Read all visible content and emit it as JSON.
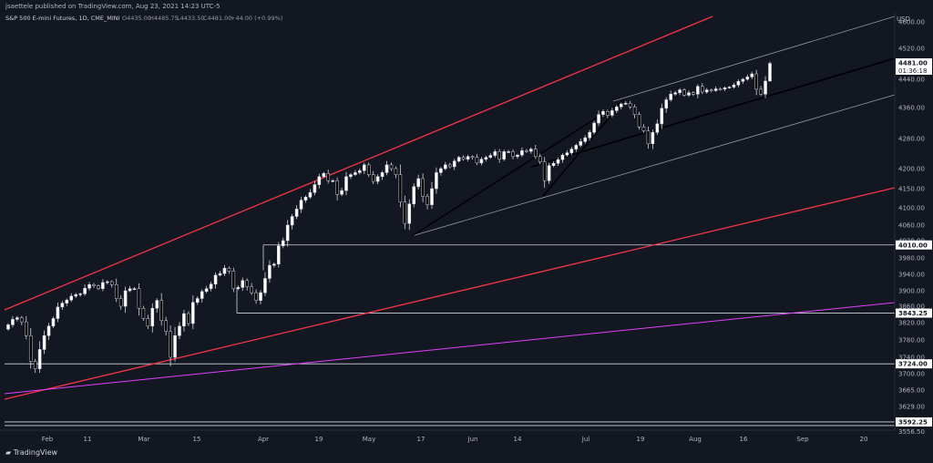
{
  "header": {
    "publish_line": "jsaettele published on TradingView.com, Aug 23, 2021 14:23 UTC-5"
  },
  "legend": {
    "symbol": "S&P 500 E-mini Futures, 1D, CME_MINI",
    "open": "O4435.00",
    "high": "H4485.75",
    "low": "L4433.50",
    "close": "C4481.00",
    "change": "+44.00 (+0.99%)"
  },
  "axis": {
    "currency": "USD",
    "current_price": "4481.00",
    "countdown": "01:36:18",
    "horizontal_level_labels": [
      "4010.00",
      "3843.25",
      "3724.00",
      "3592.25"
    ],
    "partial_label": "3556.50"
  },
  "footer": {
    "logo_text": "TradingView"
  },
  "colors": {
    "background": "#131722",
    "up_candle": "#ffffff",
    "down_candle": "#000000",
    "red_channel": "#f23645",
    "magenta_line": "#e040fb",
    "trendline": "#000000",
    "thin_channel": "#b2b5be"
  },
  "chart_data": {
    "type": "candlestick",
    "title": "S&P 500 E-mini Futures, 1D, CME_MINI",
    "xlabel": "",
    "ylabel": "",
    "ylim": [
      3575,
      4620
    ],
    "grid": false,
    "x_ticks": [
      "Feb",
      "11",
      "Mar",
      "15",
      "Apr",
      "19",
      "May",
      "17",
      "Jun",
      "14",
      "Jul",
      "19",
      "Aug",
      "16",
      "Sep",
      "20"
    ],
    "y_ticks": [
      "4600.00",
      "4520.00",
      "4440.00",
      "4360.00",
      "4280.00",
      "4200.00",
      "4150.00",
      "4100.00",
      "4060.00",
      "4020.00",
      "3980.00",
      "3940.00",
      "3900.00",
      "3860.00",
      "3820.00",
      "3780.00",
      "3740.00",
      "3700.00",
      "3665.00",
      "3629.00"
    ],
    "horizontal_levels": [
      4010.0,
      3843.25,
      3724.0,
      3592.25
    ],
    "last": {
      "open": 4435.0,
      "high": 4485.75,
      "low": 4433.5,
      "close": 4481.0,
      "change": 44.0,
      "change_pct": 0.99
    },
    "closes": [
      3815,
      3828,
      3832,
      3822,
      3790,
      3730,
      3712,
      3758,
      3790,
      3812,
      3830,
      3858,
      3868,
      3876,
      3886,
      3890,
      3892,
      3906,
      3915,
      3912,
      3905,
      3920,
      3922,
      3915,
      3880,
      3860,
      3900,
      3905,
      3905,
      3855,
      3830,
      3812,
      3855,
      3875,
      3825,
      3800,
      3740,
      3790,
      3812,
      3842,
      3818,
      3870,
      3880,
      3898,
      3905,
      3916,
      3938,
      3942,
      3955,
      3948,
      3905,
      3908,
      3925,
      3910,
      3895,
      3875,
      3895,
      3930,
      3962,
      3965,
      4008,
      4020,
      4060,
      4080,
      4097,
      4120,
      4128,
      4140,
      4160,
      4180,
      4188,
      4170,
      4170,
      4135,
      4145,
      4180,
      4185,
      4190,
      4195,
      4210,
      4185,
      4168,
      4180,
      4190,
      4210,
      4200,
      4185,
      4115,
      4064,
      4110,
      4155,
      4175,
      4130,
      4108,
      4150,
      4190,
      4200,
      4210,
      4205,
      4220,
      4230,
      4225,
      4232,
      4230,
      4215,
      4225,
      4230,
      4235,
      4245,
      4225,
      4245,
      4245,
      4232,
      4236,
      4248,
      4246,
      4252,
      4232,
      4218,
      4170,
      4208,
      4214,
      4224,
      4236,
      4242,
      4252,
      4262,
      4272,
      4282,
      4296,
      4320,
      4342,
      4350,
      4340,
      4352,
      4362,
      4370,
      4372,
      4362,
      4342,
      4310,
      4300,
      4266,
      4296,
      4318,
      4358,
      4382,
      4398,
      4402,
      4410,
      4395,
      4402,
      4398,
      4420,
      4404,
      4410,
      4408,
      4413,
      4412,
      4416,
      4418,
      4424,
      4434,
      4440,
      4446,
      4454,
      4412,
      4398,
      4435,
      4481
    ]
  }
}
